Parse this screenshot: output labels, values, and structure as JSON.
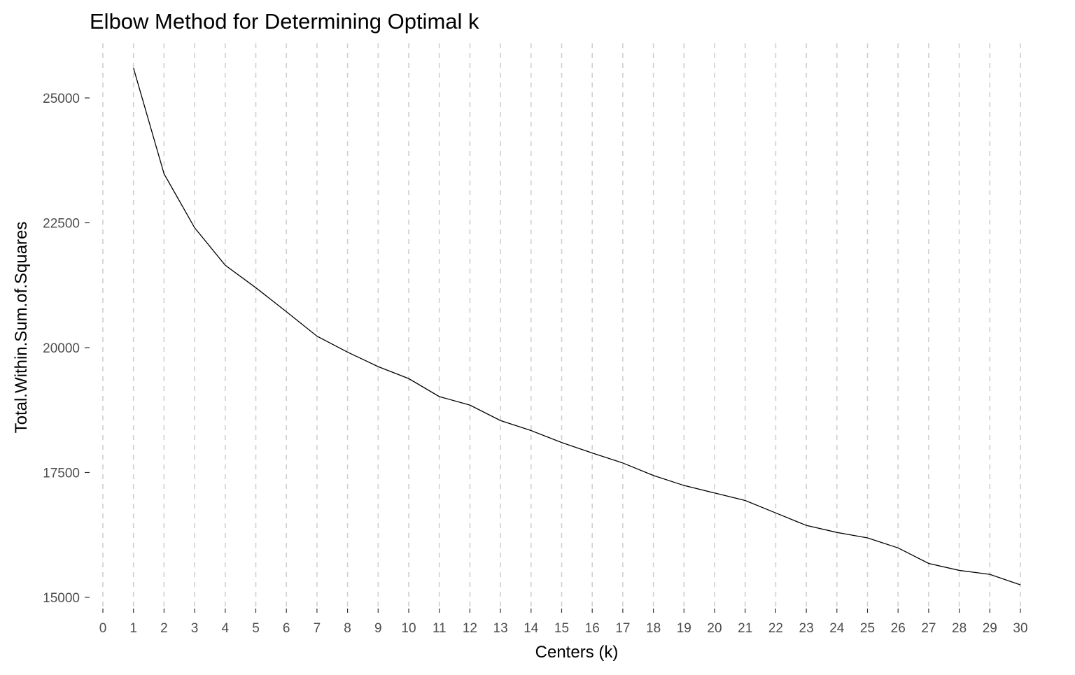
{
  "chart_data": {
    "type": "line",
    "title": "Elbow Method for Determining Optimal k",
    "xlabel": "Centers (k)",
    "ylabel": "Total.Within.Sum.of.Squares",
    "xlim": [
      0,
      30
    ],
    "ylim": [
      15000,
      25600
    ],
    "x_ticks": [
      0,
      1,
      2,
      3,
      4,
      5,
      6,
      7,
      8,
      9,
      10,
      11,
      12,
      13,
      14,
      15,
      16,
      17,
      18,
      19,
      20,
      21,
      22,
      23,
      24,
      25,
      26,
      27,
      28,
      29,
      30
    ],
    "y_ticks": [
      15000,
      17500,
      20000,
      22500,
      25000
    ],
    "grid": "vertical dashed lines at each x tick",
    "legend": "none",
    "series": [
      {
        "color": "#000000",
        "x": [
          1,
          2,
          3,
          4,
          5,
          6,
          7,
          8,
          9,
          10,
          11,
          12,
          13,
          14,
          15,
          16,
          17,
          18,
          19,
          20,
          21,
          22,
          23,
          24,
          25,
          26,
          27,
          28,
          29,
          30
        ],
        "values": [
          25600,
          23480,
          22400,
          21650,
          21200,
          20720,
          20230,
          19910,
          19620,
          19380,
          19020,
          18850,
          18540,
          18340,
          18100,
          17890,
          17690,
          17440,
          17240,
          17090,
          16940,
          16690,
          16440,
          16300,
          16190,
          15990,
          15680,
          15540,
          15460,
          15250
        ]
      }
    ]
  }
}
